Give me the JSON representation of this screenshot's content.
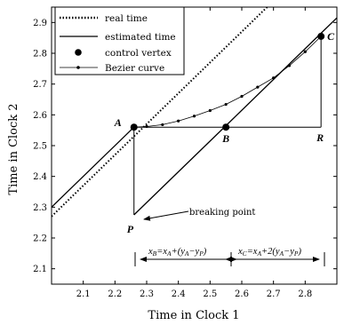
{
  "chart_data": {
    "type": "line",
    "xlabel": "Time in Clock 1",
    "ylabel": "Time in Clock 2",
    "xlim": [
      2.0,
      2.9
    ],
    "ylim": [
      2.05,
      2.95
    ],
    "xticks": [
      "2.1",
      "2.2",
      "2.3",
      "2.4",
      "2.5",
      "2.6",
      "2.7",
      "2.8"
    ],
    "yticks": [
      "2.1",
      "2.2",
      "2.3",
      "2.4",
      "2.5",
      "2.6",
      "2.7",
      "2.8",
      "2.9"
    ],
    "grid": false,
    "legend_position": "top-left",
    "series": [
      {
        "name": "real time",
        "style": "dotted",
        "points": [
          [
            2.0,
            2.27
          ],
          [
            2.5,
            2.77
          ],
          [
            2.68,
            2.95
          ]
        ]
      },
      {
        "name": "estimated time",
        "style": "solid",
        "points": [
          [
            2.0,
            2.3
          ],
          [
            2.26,
            2.56
          ]
        ]
      },
      {
        "name": "estimated time",
        "style": "solid",
        "points": [
          [
            2.26,
            2.275
          ],
          [
            2.55,
            2.565
          ],
          [
            2.84,
            2.855
          ],
          [
            2.9,
            2.915
          ]
        ]
      },
      {
        "name": "Bezier curve",
        "style": "dot-line",
        "points": [
          [
            2.26,
            2.56
          ],
          [
            2.3,
            2.562
          ],
          [
            2.35,
            2.568
          ],
          [
            2.4,
            2.58
          ],
          [
            2.45,
            2.596
          ],
          [
            2.5,
            2.614
          ],
          [
            2.55,
            2.634
          ],
          [
            2.6,
            2.66
          ],
          [
            2.65,
            2.69
          ],
          [
            2.7,
            2.72
          ],
          [
            2.75,
            2.76
          ],
          [
            2.8,
            2.805
          ],
          [
            2.85,
            2.855
          ]
        ]
      }
    ],
    "guide_lines": [
      {
        "from": [
          2.26,
          2.56
        ],
        "to": [
          2.26,
          2.275
        ]
      },
      {
        "from": [
          2.26,
          2.56
        ],
        "to": [
          2.85,
          2.56
        ]
      },
      {
        "from": [
          2.85,
          2.56
        ],
        "to": [
          2.85,
          2.855
        ]
      }
    ],
    "control_vertices": [
      {
        "label": "A",
        "x": 2.26,
        "y": 2.56
      },
      {
        "label": "B",
        "x": 2.55,
        "y": 2.56
      },
      {
        "label": "C",
        "x": 2.85,
        "y": 2.855
      }
    ],
    "point_labels": [
      {
        "label": "P",
        "x": 2.26,
        "y": 2.275
      },
      {
        "label": "R",
        "x": 2.85,
        "y": 2.56
      }
    ],
    "legend": [
      {
        "label": "real time",
        "style": "dotted"
      },
      {
        "label": "estimated time",
        "style": "solid"
      },
      {
        "label": "control vertex",
        "style": "marker"
      },
      {
        "label": "Bezier curve",
        "style": "dot-line"
      }
    ],
    "annotations": {
      "breaking_point": "breaking point",
      "xB_formula": "xB=xA+(yA−yP)",
      "xC_formula": "xC=xA+2(yA−yP)"
    }
  }
}
